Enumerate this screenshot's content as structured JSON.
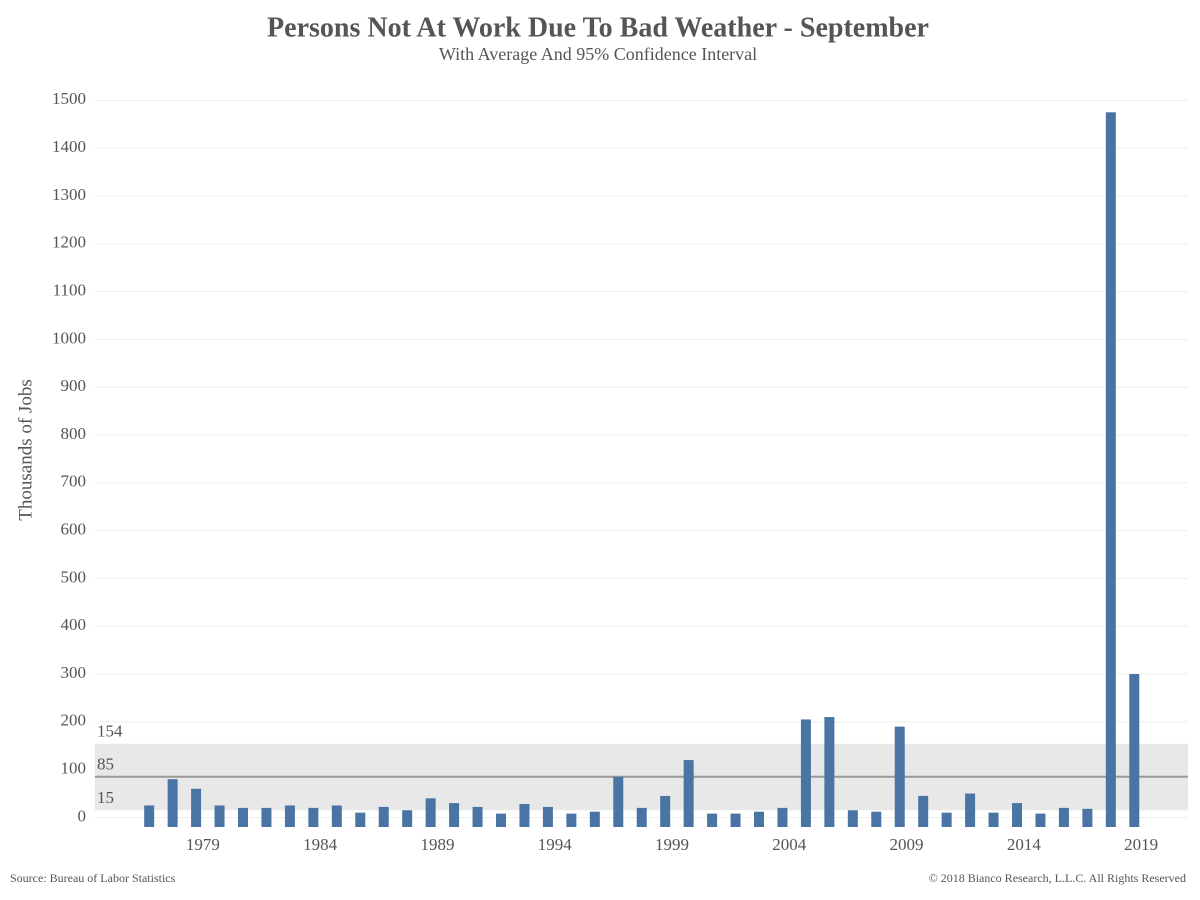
{
  "chart_data": {
    "type": "bar",
    "title": "Persons Not At Work Due To Bad Weather - September",
    "subtitle": "With Average And 95% Confidence Interval",
    "y_label": "Thousands of Jobs",
    "source": "Source: Bureau of Labor Statistics",
    "copyright": "© 2018 Bianco Research, L.L.C. All Rights Reserved",
    "x": [
      1976,
      1977,
      1978,
      1979,
      1980,
      1981,
      1982,
      1983,
      1984,
      1985,
      1986,
      1987,
      1988,
      1989,
      1990,
      1991,
      1992,
      1993,
      1994,
      1995,
      1996,
      1997,
      1998,
      1999,
      2000,
      2001,
      2002,
      2003,
      2004,
      2005,
      2006,
      2007,
      2008,
      2009,
      2010,
      2011,
      2012,
      2013,
      2014,
      2015,
      2016,
      2017,
      2018
    ],
    "values": [
      25,
      80,
      60,
      25,
      20,
      20,
      25,
      20,
      25,
      10,
      22,
      15,
      40,
      30,
      22,
      8,
      28,
      22,
      8,
      12,
      85,
      20,
      45,
      120,
      8,
      8,
      12,
      20,
      205,
      210,
      15,
      12,
      190,
      45,
      10,
      50,
      10,
      30,
      8,
      20,
      18,
      1475,
      300
    ],
    "color": "#4a74a3",
    "average": 85,
    "confidence_band": {
      "lower": 15,
      "upper": 154
    },
    "band_color": "#e8e8e8",
    "average_color": "#999999",
    "xlim": [
      1974.4,
      2021
    ],
    "xticks": [
      1979,
      1984,
      1989,
      1994,
      1999,
      2004,
      2009,
      2014,
      2019
    ],
    "ylim": [
      -20,
      1530
    ],
    "yticks": [
      0,
      100,
      200,
      300,
      400,
      500,
      600,
      700,
      800,
      900,
      1000,
      1100,
      1200,
      1300,
      1400,
      1500
    ],
    "grid": true
  }
}
